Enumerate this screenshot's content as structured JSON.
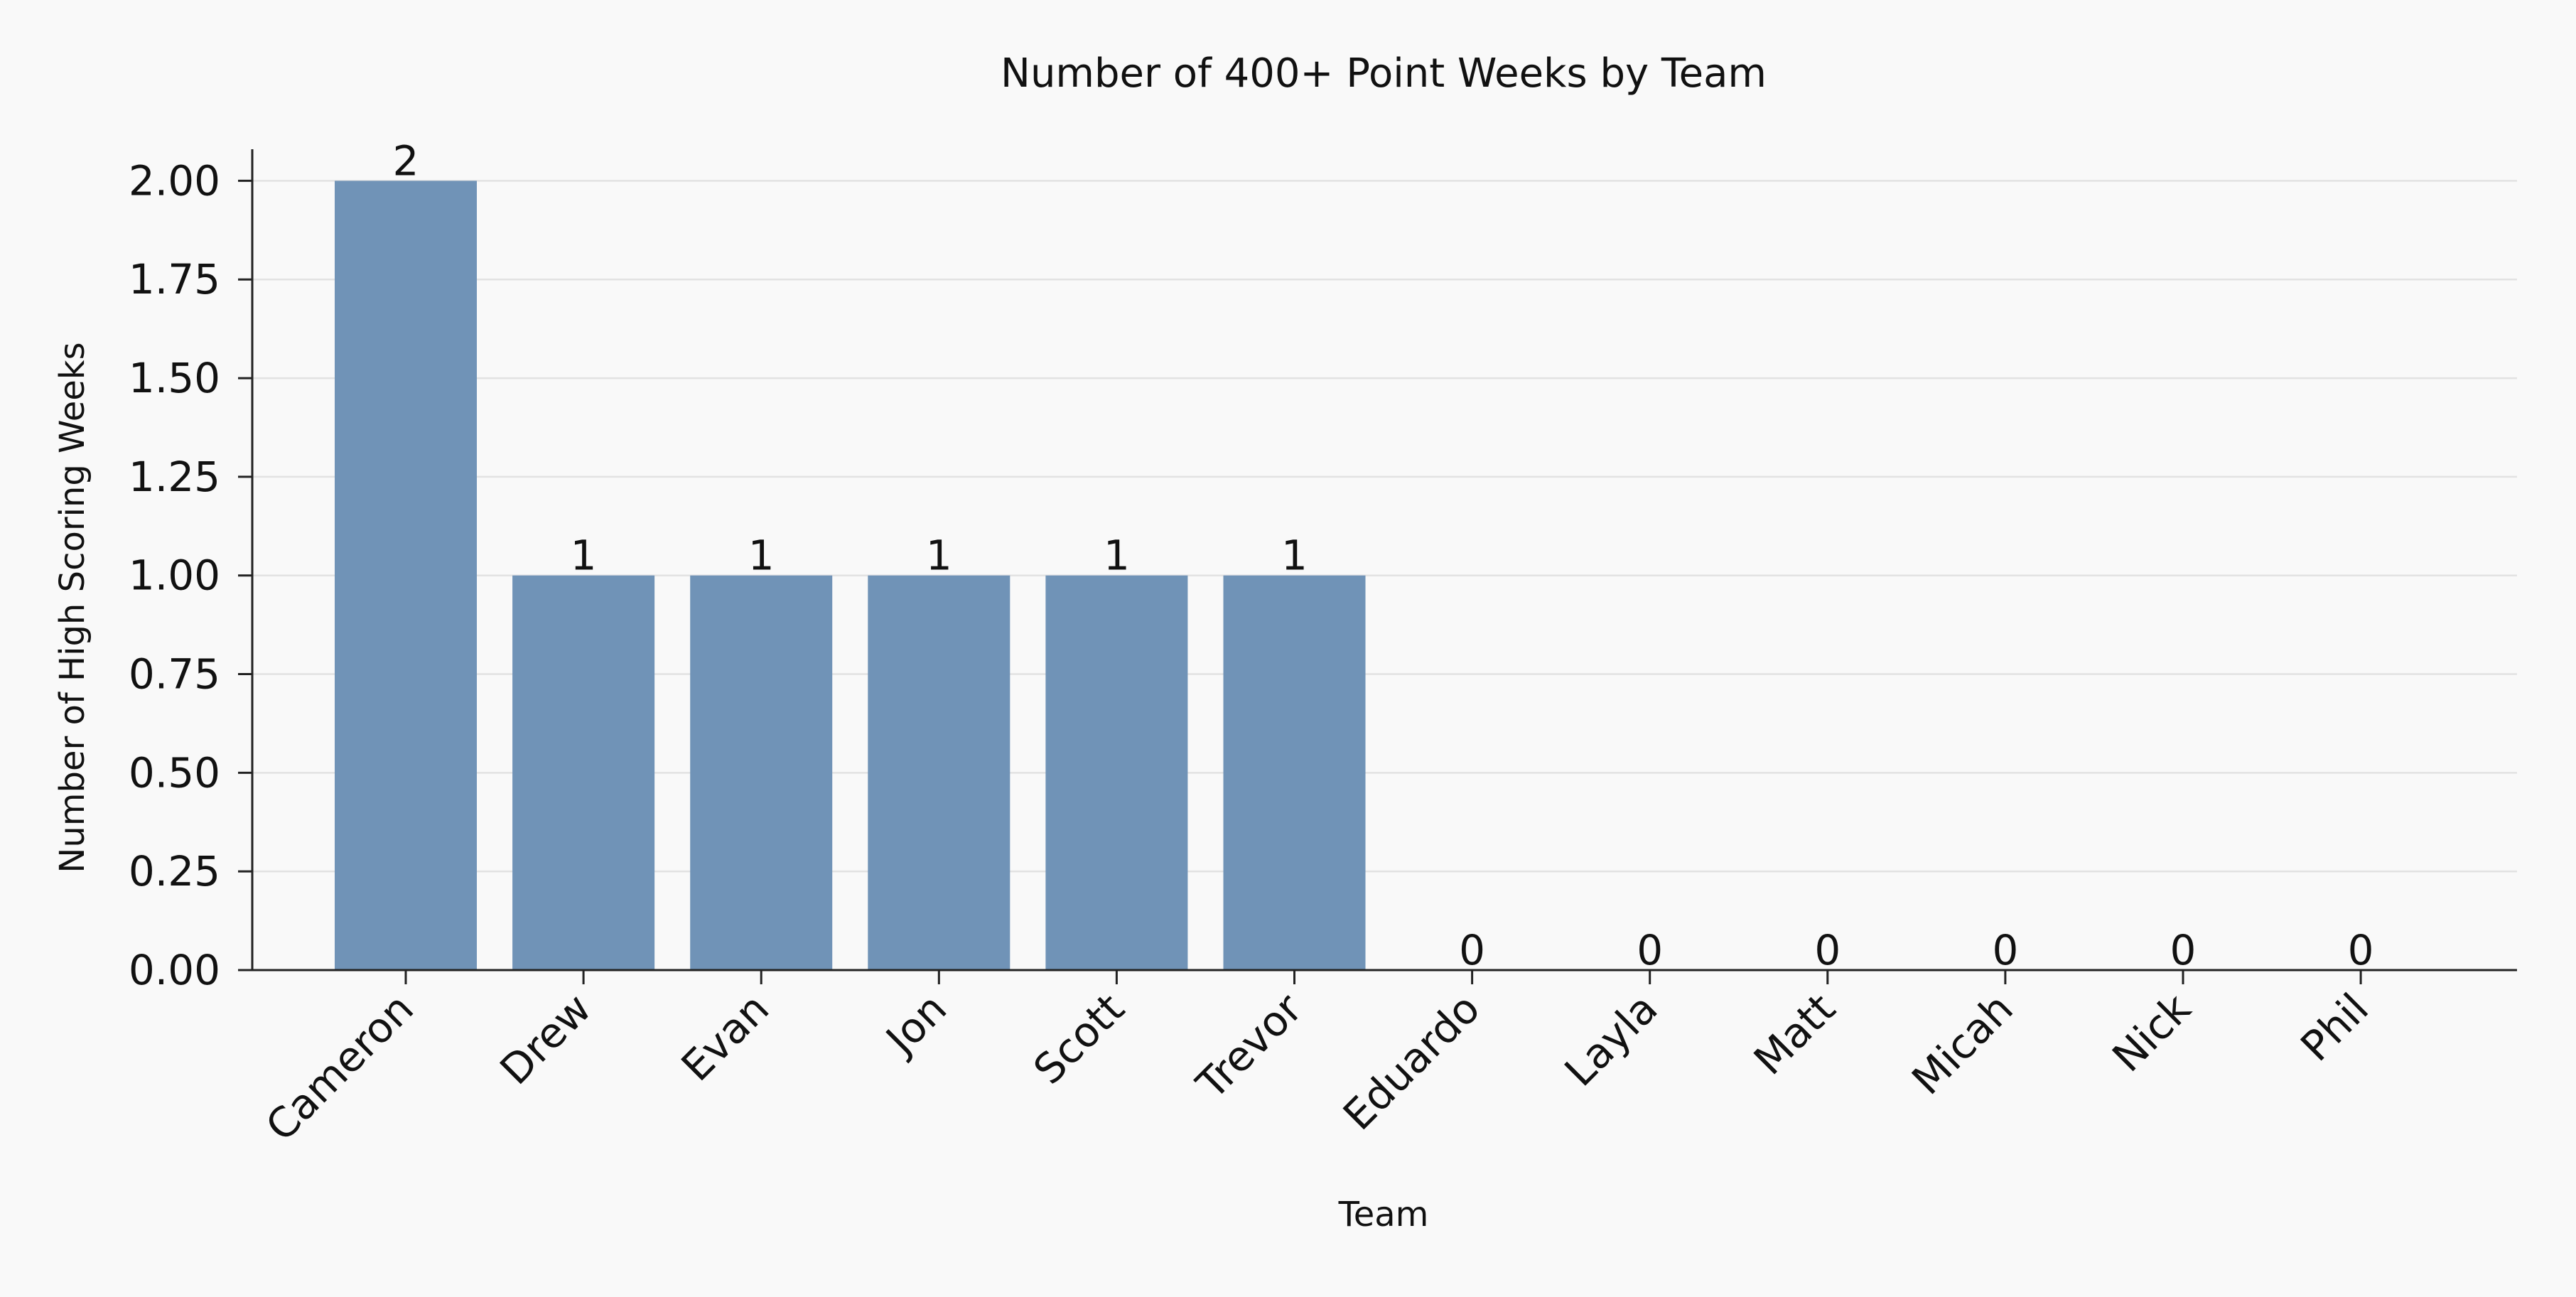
{
  "chart_data": {
    "type": "bar",
    "title": "Number of 400+ Point Weeks by Team",
    "xlabel": "Team",
    "ylabel": "Number of High Scoring Weeks",
    "categories": [
      "Cameron",
      "Drew",
      "Evan",
      "Jon",
      "Scott",
      "Trevor",
      "Eduardo",
      "Layla",
      "Matt",
      "Micah",
      "Nick",
      "Phil"
    ],
    "values": [
      2,
      1,
      1,
      1,
      1,
      1,
      0,
      0,
      0,
      0,
      0,
      0
    ],
    "data_labels": [
      "2",
      "1",
      "1",
      "1",
      "1",
      "1",
      "0",
      "0",
      "0",
      "0",
      "0",
      "0"
    ],
    "ylim": [
      0,
      2.08
    ],
    "yticks": [
      0,
      0.25,
      0.5,
      0.75,
      1,
      1.25,
      1.5,
      1.75,
      2
    ],
    "ytick_labels": [
      "0.00",
      "0.25",
      "0.50",
      "0.75",
      "1.00",
      "1.25",
      "1.50",
      "1.75",
      "2.00"
    ],
    "grid": "horizontal",
    "legend": "none",
    "colors": {
      "bar": "#7093b7",
      "background": "#f9f9f9",
      "grid": "#e2e2e2",
      "axis": "#222222",
      "text": "#111111"
    }
  }
}
